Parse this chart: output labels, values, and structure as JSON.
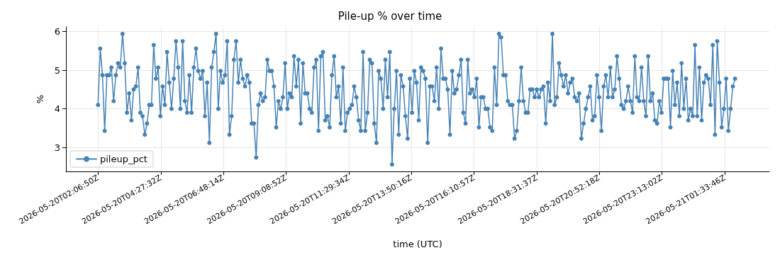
{
  "chart_data": {
    "type": "line",
    "title": "Pile-up % over time",
    "xlabel": "time (UTC)",
    "ylabel": "%",
    "xlim": [
      "2026-05-20T00:55",
      "2026-05-21T03:14"
    ],
    "xticks": [
      {
        "value": "2026-05-20T02:07",
        "label": "2026-05-20T02:06:50Z"
      },
      {
        "value": "2026-05-20T04:28",
        "label": "2026-05-20T04:27:32Z"
      },
      {
        "value": "2026-05-20T06:48",
        "label": "2026-05-20T06:48:14Z"
      },
      {
        "value": "2026-05-20T09:09",
        "label": "2026-05-20T09:08:52Z"
      },
      {
        "value": "2026-05-20T11:30",
        "label": "2026-05-20T11:29:34Z"
      },
      {
        "value": "2026-05-20T13:50",
        "label": "2026-05-20T13:50:16Z"
      },
      {
        "value": "2026-05-20T16:11",
        "label": "2026-05-20T16:10:57Z"
      },
      {
        "value": "2026-05-20T18:32",
        "label": "2026-05-20T18:31:37Z"
      },
      {
        "value": "2026-05-20T20:52",
        "label": "2026-05-20T20:52:18Z"
      },
      {
        "value": "2026-05-20T23:13",
        "label": "2026-05-20T23:13:02Z"
      },
      {
        "value": "2026-05-21T01:34",
        "label": "2026-05-21T01:33:46Z"
      }
    ],
    "ylim": [
      2.38,
      6.12
    ],
    "yticks": [
      3,
      4,
      5,
      6
    ],
    "grid": true,
    "legend": "bottom left",
    "marker": "circle",
    "line_style": "solid",
    "x": [
      "2026-05-20T02:07",
      "2026-05-20T02:12",
      "2026-05-20T02:17",
      "2026-05-20T02:22",
      "2026-05-20T02:27",
      "2026-05-20T02:32",
      "2026-05-20T02:37",
      "2026-05-20T02:42",
      "2026-05-20T02:47",
      "2026-05-20T02:52",
      "2026-05-20T02:57",
      "2026-05-20T03:02",
      "2026-05-20T03:07",
      "2026-05-20T03:12",
      "2026-05-20T03:17",
      "2026-05-20T03:22",
      "2026-05-20T03:27",
      "2026-05-20T03:32",
      "2026-05-20T03:37",
      "2026-05-20T03:42",
      "2026-05-20T03:47",
      "2026-05-20T03:52",
      "2026-05-20T03:57",
      "2026-05-20T04:02",
      "2026-05-20T04:07",
      "2026-05-20T04:12",
      "2026-05-20T04:17",
      "2026-05-20T04:22",
      "2026-05-20T04:27",
      "2026-05-20T04:32",
      "2026-05-20T04:37",
      "2026-05-20T04:42",
      "2026-05-20T04:47",
      "2026-05-20T04:52",
      "2026-05-20T04:57",
      "2026-05-20T05:02",
      "2026-05-20T05:07",
      "2026-05-20T05:12",
      "2026-05-20T05:17",
      "2026-05-20T05:22",
      "2026-05-20T05:27",
      "2026-05-20T05:32",
      "2026-05-20T05:37",
      "2026-05-20T05:42",
      "2026-05-20T05:47",
      "2026-05-20T05:52",
      "2026-05-20T05:57",
      "2026-05-20T06:02",
      "2026-05-20T06:07",
      "2026-05-20T06:12",
      "2026-05-20T06:17",
      "2026-05-20T06:22",
      "2026-05-20T06:27",
      "2026-05-20T06:32",
      "2026-05-20T06:37",
      "2026-05-20T06:42",
      "2026-05-20T06:47",
      "2026-05-20T06:52",
      "2026-05-20T06:57",
      "2026-05-20T07:02",
      "2026-05-20T07:07",
      "2026-05-20T07:12",
      "2026-05-20T07:17",
      "2026-05-20T07:22",
      "2026-05-20T07:27",
      "2026-05-20T07:32",
      "2026-05-20T07:37",
      "2026-05-20T07:42",
      "2026-05-20T07:47",
      "2026-05-20T07:52",
      "2026-05-20T07:57",
      "2026-05-20T08:02",
      "2026-05-20T08:07",
      "2026-05-20T08:12",
      "2026-05-20T08:17",
      "2026-05-20T08:22",
      "2026-05-20T08:27",
      "2026-05-20T08:32",
      "2026-05-20T08:37",
      "2026-05-20T08:42",
      "2026-05-20T08:47",
      "2026-05-20T08:52",
      "2026-05-20T08:57",
      "2026-05-20T09:02",
      "2026-05-20T09:07",
      "2026-05-20T09:12",
      "2026-05-20T09:17",
      "2026-05-20T09:22",
      "2026-05-20T09:27",
      "2026-05-20T09:32",
      "2026-05-20T09:37",
      "2026-05-20T09:42",
      "2026-05-20T09:47",
      "2026-05-20T09:52",
      "2026-05-20T09:57",
      "2026-05-20T10:02",
      "2026-05-20T10:07",
      "2026-05-20T10:12",
      "2026-05-20T10:17",
      "2026-05-20T10:22",
      "2026-05-20T10:27",
      "2026-05-20T10:32",
      "2026-05-20T10:37",
      "2026-05-20T10:42",
      "2026-05-20T10:47",
      "2026-05-20T10:52",
      "2026-05-20T10:57",
      "2026-05-20T11:02",
      "2026-05-20T11:07",
      "2026-05-20T11:12",
      "2026-05-20T11:17",
      "2026-05-20T11:22",
      "2026-05-20T11:27",
      "2026-05-20T11:32",
      "2026-05-20T11:37",
      "2026-05-20T11:42",
      "2026-05-20T11:47",
      "2026-05-20T11:52",
      "2026-05-20T11:57",
      "2026-05-20T12:02",
      "2026-05-20T12:07",
      "2026-05-20T12:12",
      "2026-05-20T12:17",
      "2026-05-20T12:22",
      "2026-05-20T12:27",
      "2026-05-20T12:32",
      "2026-05-20T12:37",
      "2026-05-20T12:42",
      "2026-05-20T12:47",
      "2026-05-20T12:52",
      "2026-05-20T12:57",
      "2026-05-20T13:02",
      "2026-05-20T13:07",
      "2026-05-20T13:12",
      "2026-05-20T13:17",
      "2026-05-20T13:22",
      "2026-05-20T13:27",
      "2026-05-20T13:32",
      "2026-05-20T13:37",
      "2026-05-20T13:42",
      "2026-05-20T13:47",
      "2026-05-20T13:52",
      "2026-05-20T13:57",
      "2026-05-20T14:02",
      "2026-05-20T14:07",
      "2026-05-20T14:12",
      "2026-05-20T14:17",
      "2026-05-20T14:22",
      "2026-05-20T14:27",
      "2026-05-20T14:32",
      "2026-05-20T14:37",
      "2026-05-20T14:42",
      "2026-05-20T14:47",
      "2026-05-20T14:52",
      "2026-05-20T14:57",
      "2026-05-20T15:02",
      "2026-05-20T15:07",
      "2026-05-20T15:12",
      "2026-05-20T15:17",
      "2026-05-20T15:22",
      "2026-05-20T15:27",
      "2026-05-20T15:32",
      "2026-05-20T15:37",
      "2026-05-20T15:42",
      "2026-05-20T15:47",
      "2026-05-20T15:52",
      "2026-05-20T15:57",
      "2026-05-20T16:02",
      "2026-05-20T16:07",
      "2026-05-20T16:12",
      "2026-05-20T16:17",
      "2026-05-20T16:22",
      "2026-05-20T16:27",
      "2026-05-20T16:32",
      "2026-05-20T16:37",
      "2026-05-20T16:42",
      "2026-05-20T16:47",
      "2026-05-20T16:52",
      "2026-05-20T16:57",
      "2026-05-20T17:02",
      "2026-05-20T17:07",
      "2026-05-20T17:12",
      "2026-05-20T17:17",
      "2026-05-20T17:22",
      "2026-05-20T17:27",
      "2026-05-20T17:32",
      "2026-05-20T17:37",
      "2026-05-20T17:42",
      "2026-05-20T17:47",
      "2026-05-20T17:52",
      "2026-05-20T17:57",
      "2026-05-20T18:02",
      "2026-05-20T18:07",
      "2026-05-20T18:12",
      "2026-05-20T18:17",
      "2026-05-20T18:22",
      "2026-05-20T18:27",
      "2026-05-20T18:32",
      "2026-05-20T18:37",
      "2026-05-20T18:42",
      "2026-05-20T18:47",
      "2026-05-20T18:52",
      "2026-05-20T18:57",
      "2026-05-20T19:02",
      "2026-05-20T19:07",
      "2026-05-20T19:12",
      "2026-05-20T19:17",
      "2026-05-20T19:22",
      "2026-05-20T19:27",
      "2026-05-20T19:32",
      "2026-05-20T19:37",
      "2026-05-20T19:42",
      "2026-05-20T19:47",
      "2026-05-20T19:52",
      "2026-05-20T19:57",
      "2026-05-20T20:02",
      "2026-05-20T20:07",
      "2026-05-20T20:12",
      "2026-05-20T20:17",
      "2026-05-20T20:22",
      "2026-05-20T20:27",
      "2026-05-20T20:32",
      "2026-05-20T20:37",
      "2026-05-20T20:42",
      "2026-05-20T20:47",
      "2026-05-20T20:52",
      "2026-05-20T20:57",
      "2026-05-20T21:02",
      "2026-05-20T21:07",
      "2026-05-20T21:12",
      "2026-05-20T21:17",
      "2026-05-20T21:22",
      "2026-05-20T21:27",
      "2026-05-20T21:32",
      "2026-05-20T21:37",
      "2026-05-20T21:42",
      "2026-05-20T21:47",
      "2026-05-20T21:52",
      "2026-05-20T21:57",
      "2026-05-20T22:02",
      "2026-05-20T22:07",
      "2026-05-20T22:12",
      "2026-05-20T22:17",
      "2026-05-20T22:22",
      "2026-05-20T22:27",
      "2026-05-20T22:32",
      "2026-05-20T22:37",
      "2026-05-20T22:42",
      "2026-05-20T22:47",
      "2026-05-20T22:52",
      "2026-05-20T22:57",
      "2026-05-20T23:02",
      "2026-05-20T23:07",
      "2026-05-20T23:12",
      "2026-05-20T23:17",
      "2026-05-20T23:22",
      "2026-05-20T23:27",
      "2026-05-20T23:32",
      "2026-05-20T23:37",
      "2026-05-20T23:42",
      "2026-05-20T23:47",
      "2026-05-20T23:52",
      "2026-05-20T23:57",
      "2026-05-21T00:02",
      "2026-05-21T00:07",
      "2026-05-21T00:12",
      "2026-05-21T00:17",
      "2026-05-21T00:22",
      "2026-05-21T00:27",
      "2026-05-21T00:32",
      "2026-05-21T00:37",
      "2026-05-21T00:42",
      "2026-05-21T00:47",
      "2026-05-21T00:52",
      "2026-05-21T00:57",
      "2026-05-21T01:02",
      "2026-05-21T01:07",
      "2026-05-21T01:12",
      "2026-05-21T01:17",
      "2026-05-21T01:22",
      "2026-05-21T01:27",
      "2026-05-21T01:32",
      "2026-05-21T01:37",
      "2026-05-21T01:42",
      "2026-05-21T01:47",
      "2026-05-21T01:52",
      "2026-05-21T01:57"
    ],
    "series": [
      {
        "name": "pileup_pct",
        "color": "#4682b4",
        "values": [
          4.1,
          5.56,
          4.87,
          3.43,
          4.87,
          4.87,
          5.07,
          4.2,
          4.87,
          5.18,
          5.07,
          5.94,
          5.18,
          3.9,
          4.4,
          3.7,
          4.5,
          4.58,
          5.07,
          3.9,
          3.81,
          3.33,
          3.62,
          4.1,
          4.1,
          5.65,
          4.78,
          5.07,
          3.81,
          4.58,
          4.1,
          5.47,
          4.68,
          4.0,
          4.78,
          5.75,
          5.07,
          4.0,
          5.75,
          4.2,
          3.9,
          4.87,
          3.9,
          5.07,
          5.56,
          4.98,
          4.78,
          4.98,
          3.81,
          4.68,
          3.12,
          5.07,
          5.47,
          5.94,
          4.0,
          4.98,
          4.68,
          4.87,
          5.75,
          3.33,
          3.81,
          5.27,
          5.75,
          4.68,
          5.27,
          4.78,
          4.58,
          4.87,
          4.68,
          3.62,
          3.62,
          2.74,
          4.1,
          4.4,
          4.2,
          4.3,
          5.27,
          4.98,
          4.98,
          4.58,
          3.52,
          4.2,
          4.0,
          4.3,
          5.18,
          4.0,
          4.4,
          4.3,
          5.36,
          4.58,
          5.27,
          3.62,
          5.18,
          4.4,
          4.4,
          4.0,
          3.9,
          5.07,
          5.27,
          3.43,
          5.36,
          5.47,
          3.7,
          3.81,
          3.52,
          4.87,
          5.36,
          4.3,
          4.58,
          3.62,
          5.07,
          3.43,
          3.9,
          4.0,
          4.1,
          4.58,
          4.3,
          3.7,
          3.43,
          5.47,
          3.43,
          3.9,
          5.27,
          5.18,
          3.62,
          3.12,
          4.98,
          4.78,
          4.0,
          5.27,
          4.3,
          5.47,
          2.56,
          4.0,
          4.98,
          3.33,
          4.87,
          4.58,
          3.81,
          3.23,
          4.78,
          3.9,
          4.98,
          4.68,
          3.7,
          5.07,
          4.98,
          4.78,
          3.12,
          4.58,
          4.58,
          4.2,
          5.07,
          4.0,
          5.56,
          4.78,
          4.78,
          4.5,
          3.33,
          4.98,
          4.4,
          4.5,
          4.87,
          5.27,
          3.9,
          3.62,
          5.27,
          4.4,
          4.5,
          4.3,
          4.78,
          3.52,
          4.3,
          4.3,
          4.0,
          4.0,
          3.52,
          3.43,
          5.07,
          4.1,
          5.94,
          5.85,
          4.87,
          4.87,
          4.2,
          4.1,
          4.1,
          3.23,
          3.43,
          4.2,
          5.07,
          4.2,
          3.9,
          3.9,
          4.5,
          4.5,
          4.3,
          4.5,
          4.3,
          4.5,
          4.58,
          3.62,
          4.68,
          4.2,
          5.94,
          4.1,
          4.3,
          5.18,
          4.87,
          4.58,
          4.87,
          4.4,
          4.68,
          4.78,
          4.3,
          4.2,
          4.4,
          3.23,
          3.62,
          4.0,
          4.3,
          4.58,
          3.7,
          3.81,
          4.87,
          4.3,
          3.43,
          4.58,
          4.87,
          4.3,
          5.07,
          4.3,
          4.5,
          5.36,
          4.78,
          4.1,
          4.0,
          4.2,
          4.58,
          4.2,
          3.9,
          5.36,
          4.3,
          4.2,
          5.07,
          4.2,
          3.81,
          5.36,
          4.2,
          4.4,
          3.7,
          3.62,
          4.2,
          3.9,
          4.78,
          4.78,
          4.78,
          3.52,
          4.98,
          4.1,
          4.68,
          3.81,
          5.18,
          4.0,
          4.78,
          3.7,
          4.0,
          3.81,
          5.65,
          3.81,
          5.07,
          3.7,
          4.68,
          4.87,
          4.78,
          4.1,
          5.65,
          3.33,
          5.75,
          4.68,
          3.52,
          4.0,
          4.78,
          3.43,
          4.0,
          4.58,
          4.78
        ]
      }
    ]
  }
}
